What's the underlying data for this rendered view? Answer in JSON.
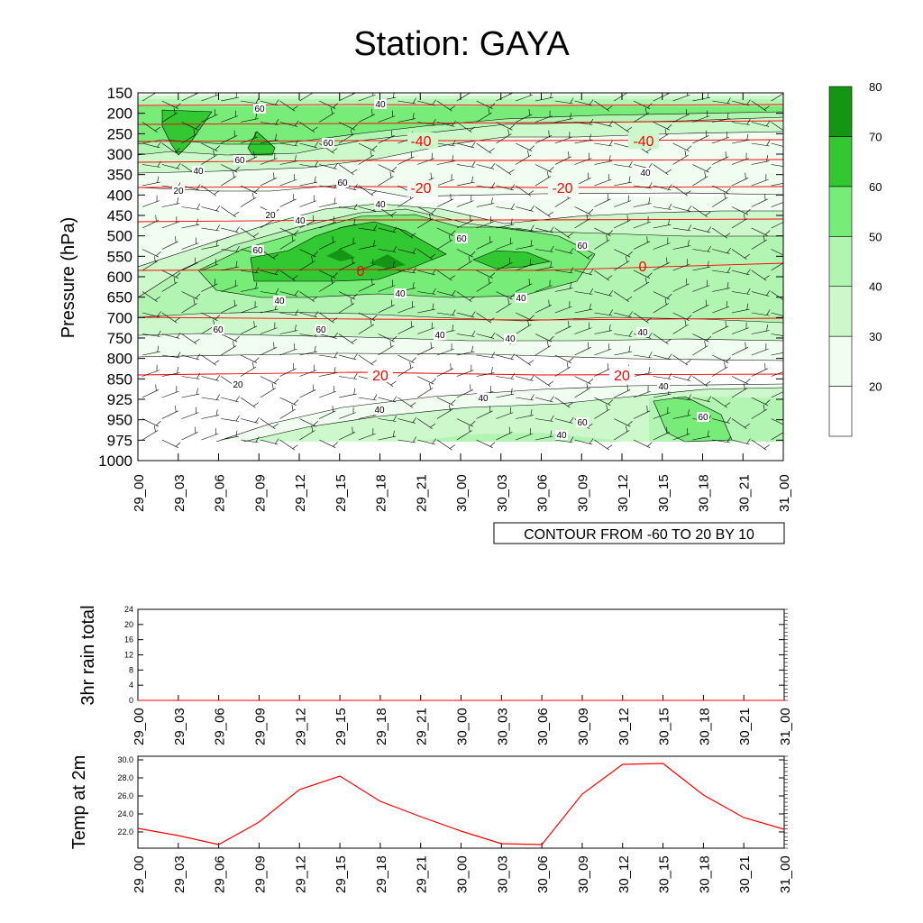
{
  "title": "Station: GAYA",
  "time_labels": [
    "29_00",
    "29_03",
    "29_06",
    "29_09",
    "29_12",
    "29_15",
    "29_18",
    "29_21",
    "30_00",
    "30_03",
    "30_06",
    "30_09",
    "30_12",
    "30_15",
    "30_18",
    "30_21",
    "31_00"
  ],
  "colors": {
    "rh_fill": [
      "#ffffff",
      "#f0fdf0",
      "#ccf8cc",
      "#b2f4b2",
      "#78ec78",
      "#32c832",
      "#149614"
    ],
    "temperature_line": "#ff0000",
    "axis": "#000000"
  },
  "chart_data": [
    {
      "type": "heatmap",
      "description_of_fields": "Filled contours of relative humidity (%), red contour lines of temperature (degC), black wind barbs",
      "ylabel": "Pressure (hPa)",
      "ylim": [
        1000,
        150
      ],
      "y_ticks": [
        "150",
        "200",
        "250",
        "300",
        "350",
        "400",
        "450",
        "500",
        "550",
        "600",
        "650",
        "700",
        "750",
        "800",
        "850",
        "925",
        "950",
        "975",
        "1000"
      ],
      "x_ticks": [
        "29_00",
        "29_03",
        "29_06",
        "29_09",
        "29_12",
        "29_15",
        "29_18",
        "29_21",
        "30_00",
        "30_03",
        "30_06",
        "30_09",
        "30_12",
        "30_15",
        "30_18",
        "30_21",
        "31_00"
      ],
      "colorbar": {
        "levels": [
          "20",
          "30",
          "40",
          "50",
          "60",
          "70",
          "80"
        ]
      },
      "contour_info": "CONTOUR FROM -60 TO 20 BY 10",
      "rh_contour_labels": [
        "60",
        "60",
        "60",
        "40",
        "20",
        "60",
        "40",
        "20",
        "40",
        "60",
        "60",
        "40",
        "40",
        "40",
        "60",
        "60",
        "40",
        "40",
        "40",
        "40",
        "40",
        "60",
        "40",
        "40",
        "60",
        "40",
        "20",
        "40",
        "60"
      ],
      "temperature_labels": [
        "-40",
        "-40",
        "-20",
        "-20",
        "0",
        "0",
        "20",
        "20"
      ]
    },
    {
      "type": "line",
      "ylabel": "3hr rain total",
      "ylim": [
        0,
        24
      ],
      "y_ticks": [
        "0",
        "4",
        "8",
        "12",
        "16",
        "20",
        "24"
      ],
      "x_ticks": [
        "29_00",
        "29_03",
        "29_06",
        "29_09",
        "29_12",
        "29_15",
        "29_18",
        "29_21",
        "30_00",
        "30_03",
        "30_06",
        "30_09",
        "30_12",
        "30_15",
        "30_18",
        "30_21",
        "31_00"
      ],
      "values": [
        0,
        0,
        0,
        0,
        0,
        0,
        0,
        0,
        0,
        0,
        0,
        0,
        0,
        0,
        0,
        0,
        0
      ]
    },
    {
      "type": "line",
      "ylabel": "Temp at 2m",
      "ylim": [
        20.2,
        30.4
      ],
      "y_ticks": [
        "22.0",
        "24.0",
        "26.0",
        "28.0",
        "30.0"
      ],
      "x_ticks": [
        "29_00",
        "29_03",
        "29_06",
        "29_09",
        "29_12",
        "29_15",
        "29_18",
        "29_21",
        "30_00",
        "30_03",
        "30_06",
        "30_09",
        "30_12",
        "30_15",
        "30_18",
        "30_21",
        "31_00"
      ],
      "values": [
        22.4,
        21.6,
        20.6,
        23.1,
        26.7,
        28.2,
        25.4,
        23.7,
        22.1,
        20.7,
        20.6,
        26.2,
        29.5,
        29.6,
        26.1,
        23.6,
        22.3
      ]
    }
  ]
}
